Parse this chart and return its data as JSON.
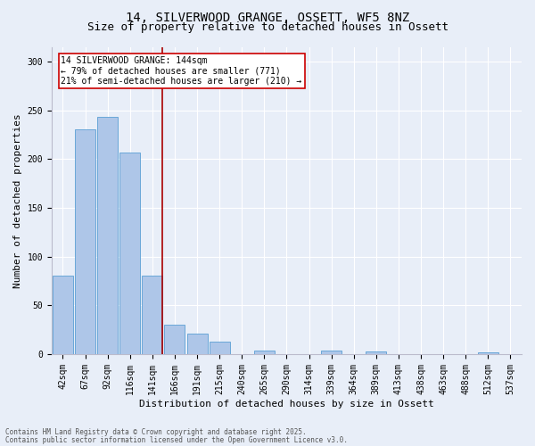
{
  "title1": "14, SILVERWOOD GRANGE, OSSETT, WF5 8NZ",
  "title2": "Size of property relative to detached houses in Ossett",
  "xlabel": "Distribution of detached houses by size in Ossett",
  "ylabel": "Number of detached properties",
  "categories": [
    "42sqm",
    "67sqm",
    "92sqm",
    "116sqm",
    "141sqm",
    "166sqm",
    "191sqm",
    "215sqm",
    "240sqm",
    "265sqm",
    "290sqm",
    "314sqm",
    "339sqm",
    "364sqm",
    "389sqm",
    "413sqm",
    "438sqm",
    "463sqm",
    "488sqm",
    "512sqm",
    "537sqm"
  ],
  "values": [
    80,
    230,
    243,
    207,
    80,
    30,
    21,
    13,
    0,
    4,
    0,
    0,
    4,
    0,
    3,
    0,
    0,
    0,
    0,
    2,
    0
  ],
  "bar_color": "#aec6e8",
  "bar_edge_color": "#5a9fd4",
  "highlight_index": 4,
  "highlight_line_color": "#aa0000",
  "annotation_text": "14 SILVERWOOD GRANGE: 144sqm\n← 79% of detached houses are smaller (771)\n21% of semi-detached houses are larger (210) →",
  "annotation_box_color": "#ffffff",
  "annotation_box_edge": "#cc0000",
  "footer1": "Contains HM Land Registry data © Crown copyright and database right 2025.",
  "footer2": "Contains public sector information licensed under the Open Government Licence v3.0.",
  "ylim": [
    0,
    315
  ],
  "yticks": [
    0,
    50,
    100,
    150,
    200,
    250,
    300
  ],
  "bg_color": "#e8eef8",
  "title_fontsize": 10,
  "subtitle_fontsize": 9,
  "axis_label_fontsize": 8,
  "tick_fontsize": 7,
  "annotation_fontsize": 7,
  "footer_fontsize": 5.5
}
